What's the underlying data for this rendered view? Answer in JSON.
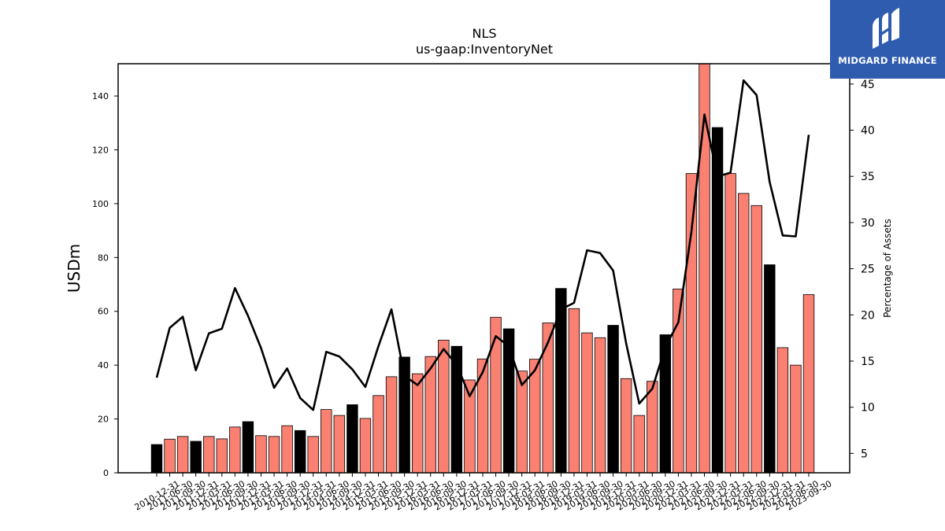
{
  "chart_data": {
    "type": "bar",
    "title": "NLS",
    "subtitle": "us-gaap:InventoryNet",
    "ylabel": "USDm",
    "y2label": "Percentage of Assets",
    "ylim": [
      0,
      152
    ],
    "y2lim": [
      2.9,
      47.2
    ],
    "yticks": [
      0,
      20,
      40,
      60,
      80,
      100,
      120,
      140
    ],
    "y2ticks": [
      5,
      10,
      15,
      20,
      25,
      30,
      35,
      40,
      45
    ],
    "colors": {
      "bar": "#fa8072",
      "highlight_bar": "#000000",
      "line": "#000000"
    },
    "categories": [
      "2010-12-31",
      "2011-06-30",
      "2011-09-30",
      "2011-12-31",
      "2012-03-31",
      "2012-06-30",
      "2012-09-30",
      "2012-12-31",
      "2013-03-31",
      "2013-06-30",
      "2013-09-30",
      "2013-12-31",
      "2014-03-31",
      "2014-06-30",
      "2014-09-30",
      "2014-12-31",
      "2015-03-31",
      "2015-06-30",
      "2015-09-30",
      "2015-12-31",
      "2016-03-31",
      "2016-06-30",
      "2016-09-30",
      "2016-12-31",
      "2017-03-31",
      "2017-06-30",
      "2017-09-30",
      "2017-12-31",
      "2018-03-31",
      "2018-06-30",
      "2018-09-30",
      "2018-12-31",
      "2019-03-31",
      "2019-06-30",
      "2019-09-30",
      "2019-12-31",
      "2020-03-31",
      "2020-06-30",
      "2020-09-30",
      "2020-12-31",
      "2021-03-31",
      "2021-06-30",
      "2021-09-30",
      "2021-12-31",
      "2022-03-31",
      "2022-06-30",
      "2022-09-30",
      "2022-12-31",
      "2023-03-31",
      "2023-06-30",
      "2023-09-30"
    ],
    "highlight": [
      1,
      0,
      0,
      1,
      0,
      0,
      0,
      1,
      0,
      0,
      0,
      1,
      0,
      0,
      0,
      1,
      0,
      0,
      0,
      1,
      0,
      0,
      0,
      1,
      0,
      0,
      0,
      1,
      0,
      0,
      0,
      1,
      0,
      0,
      0,
      1,
      0,
      0,
      0,
      1,
      0,
      0,
      0,
      1,
      0,
      0,
      0,
      1,
      0,
      0,
      0
    ],
    "series": [
      {
        "name": "",
        "kind": "bar",
        "axis": "left",
        "values": [
          10.5,
          12.5,
          13.5,
          11.7,
          13.5,
          12.6,
          17.0,
          19.0,
          13.8,
          13.5,
          17.5,
          15.7,
          13.5,
          23.5,
          21.3,
          25.3,
          20.2,
          28.7,
          35.7,
          43.0,
          36.8,
          43.2,
          49.3,
          47.0,
          34.5,
          42.3,
          57.8,
          53.5,
          37.8,
          42.2,
          55.7,
          68.5,
          61.0,
          52.0,
          50.2,
          54.8,
          35.0,
          21.3,
          34.0,
          51.3,
          68.3,
          111.2,
          152.5,
          128.3,
          111.2,
          103.8,
          99.3,
          77.3,
          46.5,
          40.0,
          66.2
        ]
      },
      {
        "name": "",
        "kind": "line",
        "axis": "right",
        "values": [
          13.2,
          18.6,
          19.8,
          14.0,
          18.0,
          18.5,
          22.9,
          19.9,
          16.4,
          12.1,
          14.2,
          11.0,
          9.7,
          16.0,
          15.5,
          14.1,
          12.2,
          16.6,
          20.6,
          13.4,
          12.4,
          14.2,
          16.3,
          14.6,
          11.2,
          13.8,
          17.7,
          16.6,
          12.4,
          14.0,
          17.0,
          20.6,
          21.3,
          27.0,
          26.7,
          24.8,
          16.9,
          10.4,
          12.0,
          16.5,
          19.2,
          29.0,
          41.7,
          35.0,
          35.4,
          45.4,
          43.8,
          34.4,
          28.6,
          28.5,
          39.5
        ]
      }
    ]
  },
  "logo": {
    "text": "MIDGARD FINANCE"
  }
}
